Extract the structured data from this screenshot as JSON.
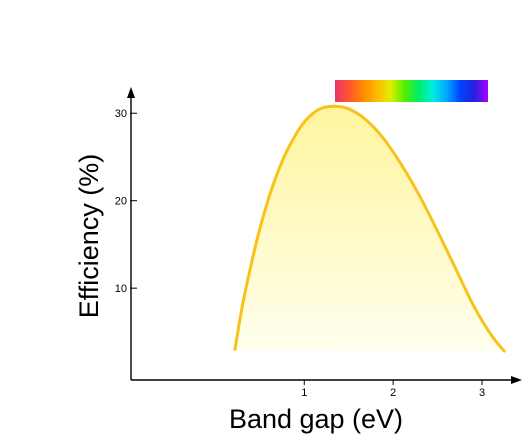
{
  "chart_data": {
    "type": "area",
    "title": "",
    "xlabel": "Band gap (eV)",
    "ylabel": "Efficiency (%)",
    "xlim": [
      -0.95,
      3.45
    ],
    "ylim": [
      -0.5,
      33
    ],
    "x_ticks": [
      1,
      2,
      3
    ],
    "y_ticks": [
      10,
      20,
      30
    ],
    "x_tick_labels": [
      "1",
      "2",
      "3"
    ],
    "y_tick_labels": [
      "10",
      "20",
      "30"
    ],
    "grid": false,
    "legend": "none",
    "series": [
      {
        "x": [
          0.22,
          0.3,
          0.4,
          0.5,
          0.6,
          0.7,
          0.8,
          0.9,
          1.0,
          1.1,
          1.2,
          1.34,
          1.5,
          1.7,
          1.9,
          2.1,
          2.3,
          2.5,
          2.7,
          2.9,
          3.1,
          3.25
        ],
        "values": [
          3.0,
          7.8,
          12.6,
          16.8,
          20.3,
          23.2,
          25.6,
          27.5,
          29.0,
          30.0,
          30.6,
          30.8,
          30.5,
          29.2,
          27.0,
          24.0,
          20.5,
          16.5,
          12.3,
          8.1,
          4.7,
          2.8
        ]
      }
    ],
    "colors": {
      "curve": "#f7c31a",
      "fill_top": "#fff59e",
      "fill_bottom": "#ffffee"
    },
    "spectrum_bar": {
      "colors": [
        "#ee3366",
        "#ff5533",
        "#ff8800",
        "#ffbb00",
        "#ddee00",
        "#55ee00",
        "#00ee66",
        "#00eedd",
        "#00aaff",
        "#0044ff",
        "#2222dd",
        "#aa00ff"
      ]
    }
  }
}
